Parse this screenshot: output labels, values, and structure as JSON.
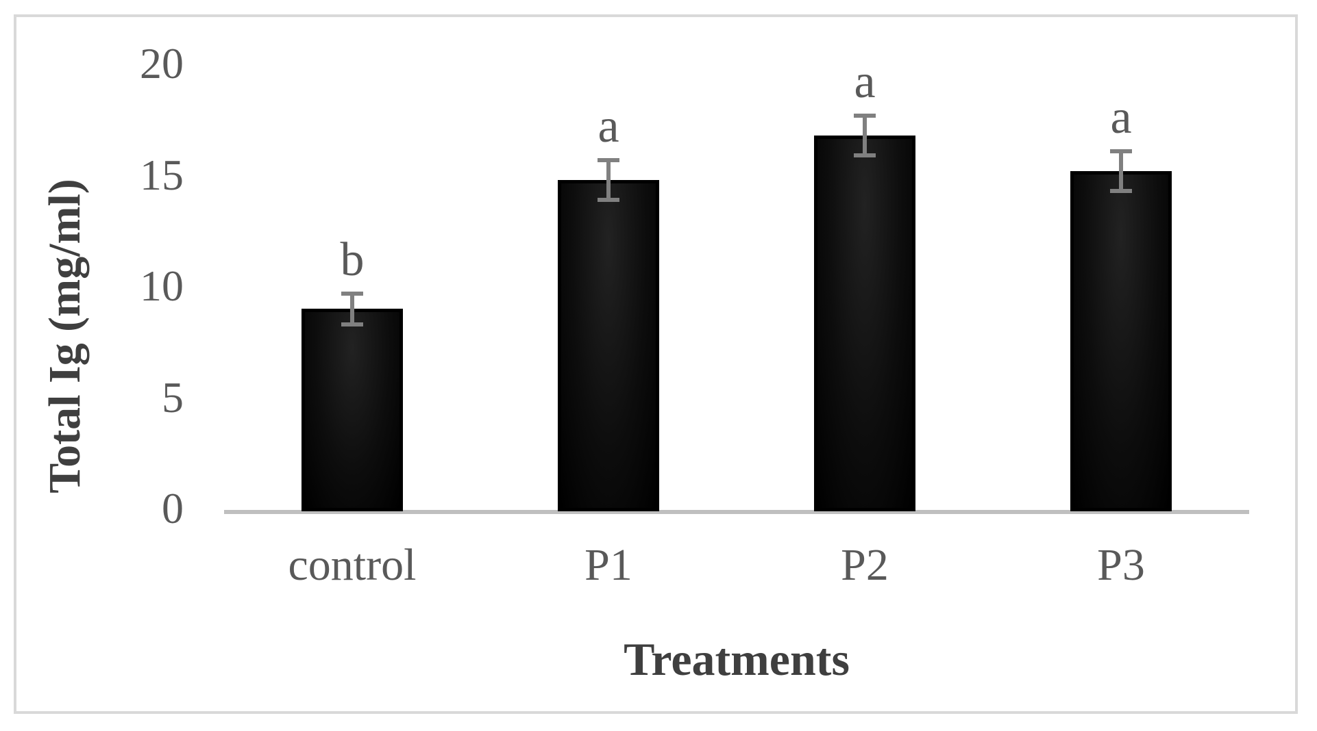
{
  "chart_data": {
    "type": "bar",
    "title": "",
    "xlabel": "Treatments",
    "ylabel": "Total Ig (mg/ml)",
    "categories": [
      "control",
      "P1",
      "P2",
      "P3"
    ],
    "values": [
      9.1,
      14.9,
      16.9,
      15.3
    ],
    "errors": [
      0.7,
      0.9,
      0.9,
      0.9
    ],
    "sig_letters": [
      "b",
      "a",
      "a",
      "a"
    ],
    "ylim": [
      0,
      20
    ],
    "yticks": [
      0,
      5,
      10,
      15,
      20
    ],
    "grid": false,
    "legend": false,
    "colors": {
      "bar_fill": "#0d0d0d",
      "bar_border": "#000000",
      "error_bar": "#808080",
      "axis_line": "#bfbfbf",
      "tick_label": "#595959",
      "sig_letter": "#595959",
      "axis_title": "#3f3f3f",
      "frame_border": "#d9d9d9",
      "background": "#ffffff"
    }
  }
}
